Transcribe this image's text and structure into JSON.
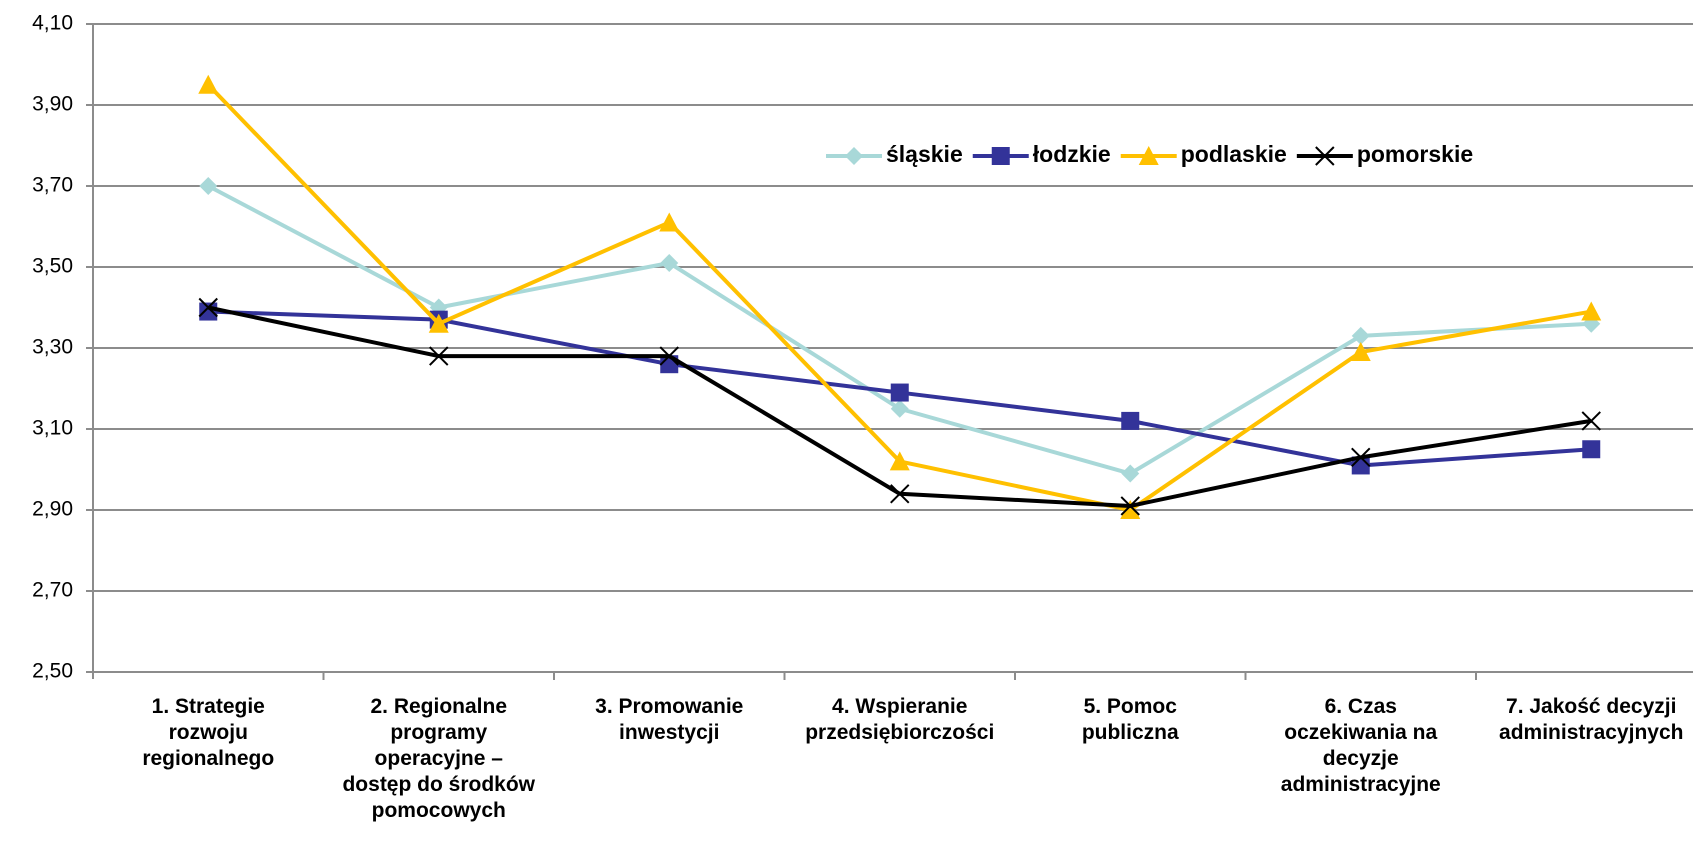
{
  "chart_data": {
    "type": "line",
    "categories": [
      "1. Strategie\nrozwoju\nregionalnego",
      "2. Regionalne\nprogramy\noperacyjne –\ndostęp do środków\npomocowych",
      "3. Promowanie\ninwestycji",
      "4. Wspieranie\nprzedsiębiorczości",
      "5. Pomoc\npubliczna",
      "6. Czas\noczekiwania na\ndecyzje\nadministracyjne",
      "7. Jakość decyzji\nadministracyjnych"
    ],
    "series": [
      {
        "name": "śląskie",
        "color": "#a8d8d8",
        "marker": "diamond",
        "values": [
          3.7,
          3.4,
          3.51,
          3.15,
          2.99,
          3.33,
          3.36
        ]
      },
      {
        "name": "łodzkie",
        "color": "#333399",
        "marker": "square",
        "values": [
          3.39,
          3.37,
          3.26,
          3.19,
          3.12,
          3.01,
          3.05
        ]
      },
      {
        "name": "podlaskie",
        "color": "#ffc000",
        "marker": "triangle",
        "values": [
          3.95,
          3.36,
          3.61,
          3.02,
          2.9,
          3.29,
          3.39
        ]
      },
      {
        "name": "pomorskie",
        "color": "#000000",
        "marker": "x",
        "values": [
          3.4,
          3.28,
          3.28,
          2.94,
          2.91,
          3.03,
          3.12
        ]
      }
    ],
    "ylim": [
      2.5,
      4.1
    ],
    "yticks": [
      {
        "value": 2.5,
        "label": "2,50"
      },
      {
        "value": 2.7,
        "label": "2,70"
      },
      {
        "value": 2.9,
        "label": "2,90"
      },
      {
        "value": 3.1,
        "label": "3,10"
      },
      {
        "value": 3.3,
        "label": "3,30"
      },
      {
        "value": 3.5,
        "label": "3,50"
      },
      {
        "value": 3.7,
        "label": "3,70"
      },
      {
        "value": 3.9,
        "label": "3,90"
      },
      {
        "value": 4.1,
        "label": "4,10"
      }
    ],
    "grid": true,
    "legend": "top-right"
  }
}
